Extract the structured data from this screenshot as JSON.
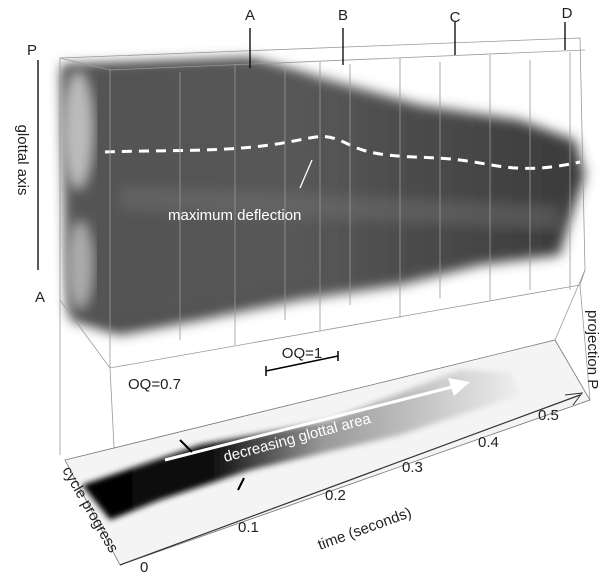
{
  "markers": [
    "A",
    "B",
    "C",
    "D"
  ],
  "glottal_axis": {
    "top": "P",
    "label": "glottal axis",
    "bottom": "A"
  },
  "annotations": {
    "max_deflection": "maximum deflection",
    "oq_1": "OQ=1",
    "oq_07": "OQ=0.7",
    "decreasing": "decreasing glottal area",
    "projection": "projection P"
  },
  "bottom_axes": {
    "cycle": "cycle progress",
    "time_label": "time (seconds)",
    "time_ticks": [
      "0",
      "0.1",
      "0.2",
      "0.3",
      "0.4",
      "0.5"
    ]
  }
}
